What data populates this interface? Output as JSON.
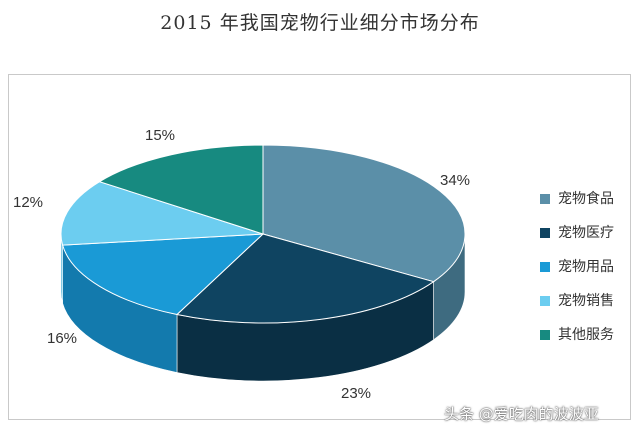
{
  "chart_data": {
    "type": "pie",
    "title": "2015 年我国宠物行业细分市场分布",
    "three_d": true,
    "legend_position": "right",
    "slices": [
      {
        "name": "宠物食品",
        "value": 34,
        "label": "34%",
        "color": "#5b8fa8",
        "side_color": "#3e6b80"
      },
      {
        "name": "宠物医疗",
        "value": 23,
        "label": "23%",
        "color": "#0f4461",
        "side_color": "#0a2f44"
      },
      {
        "name": "宠物用品",
        "value": 16,
        "label": "16%",
        "color": "#1a9ad6",
        "side_color": "#137aad"
      },
      {
        "name": "宠物销售",
        "value": 12,
        "label": "12%",
        "color": "#6ccdf0",
        "side_color": "#4eb3d8"
      },
      {
        "name": "其他服务",
        "value": 15,
        "label": "15%",
        "color": "#178a80",
        "side_color": "#0f6b63"
      }
    ]
  },
  "watermark": "头条 @爱吃肉的波波亚"
}
